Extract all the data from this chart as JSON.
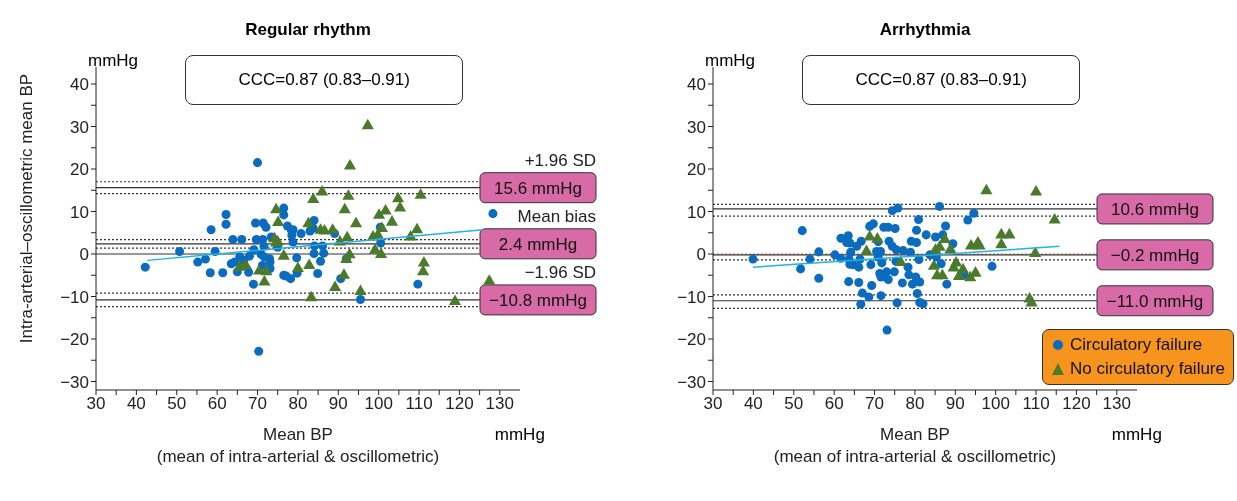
{
  "chart_data": [
    {
      "type": "scatter",
      "title": "Regular rhythm",
      "xlabel": "Mean BP\n(mean of intra-arterial & oscillometric)",
      "ylabel": "Intra-arterial–oscillometric mean BP",
      "xlim": [
        30,
        135
      ],
      "xticks": [
        30,
        {
          "value": 35,
          "label": null
        },
        40,
        {
          "value": 45,
          "label": null
        },
        50,
        {
          "value": 55,
          "label": null
        },
        60,
        {
          "value": 65,
          "label": null
        },
        70,
        {
          "value": 75,
          "label": null
        },
        80,
        {
          "value": 85,
          "label": null
        },
        90,
        {
          "value": 95,
          "label": null
        },
        100,
        {
          "value": 105,
          "label": null
        },
        110,
        {
          "value": 115,
          "label": null
        },
        120,
        {
          "value": 125,
          "label": null
        },
        130
      ],
      "ylim": [
        -32,
        44
      ],
      "yticks": [
        {
          "value": -30,
          "label": "−30"
        },
        {
          "value": -25,
          "label": null
        },
        {
          "value": -20,
          "label": "−20"
        },
        {
          "value": -15,
          "label": null
        },
        {
          "value": -10,
          "label": "−10"
        },
        {
          "value": -5,
          "label": null
        },
        0,
        {
          "value": 5,
          "label": null
        },
        10,
        {
          "value": 15,
          "label": null
        },
        20,
        {
          "value": 25,
          "label": null
        },
        30,
        {
          "value": 35,
          "label": null
        },
        40
      ],
      "legend": false,
      "series": [
        {
          "type": "scatter",
          "color": "#0b6cbf",
          "marker": "circle",
          "x": [
            42.2,
            50.7,
            55.2,
            57.1,
            58.3,
            61.4,
            58.5,
            59.5,
            62.2,
            62.2,
            63.9,
            66.1,
            63.5,
            64.3,
            65.0,
            65.6,
            66.6,
            68.0,
            67.8,
            69.0,
            69.5,
            69.7,
            69.1,
            70.0,
            70.3,
            71.4,
            72.1,
            71.3,
            71.6,
            70.9,
            71.7,
            73.0,
            73.1,
            71.2,
            73.1,
            73.4,
            75.0,
            76.5,
            76.5,
            77.4,
            78.4,
            78.8,
            78.5,
            80.8,
            78.8,
            79.7,
            76.5,
            77.1,
            78.2,
            79.8,
            83.0,
            84.0,
            83.8,
            84.1,
            86.1,
            84.0,
            86.4,
            85.6,
            84.9,
            89.1,
            90.6,
            92.0,
            95.5,
            100.4,
            100.5,
            109.7,
            128.3
          ],
          "values": [
            -3.1,
            0.6,
            -1.9,
            -1.2,
            -4.4,
            -4.4,
            5.7,
            0.6,
            9.3,
            7.0,
            3.4,
            3.4,
            -2.3,
            -1.9,
            -4.2,
            -0.7,
            -1.5,
            -0.5,
            -4.3,
            -7.1,
            7.3,
            3.4,
            1.0,
            21.5,
            -22.9,
            7.3,
            6.3,
            3.4,
            1.8,
            -0.1,
            -0.7,
            -1.1,
            -1.9,
            -2.7,
            -3.4,
            4.0,
            1.6,
            10.8,
            9.2,
            6.6,
            5.6,
            5.7,
            4.4,
            4.8,
            2.8,
            -0.9,
            -5.0,
            -5.2,
            -5.8,
            -4.5,
            5.4,
            7.9,
            6.1,
            1.9,
            1.9,
            0.1,
            0.2,
            -1.7,
            -4.6,
            4.8,
            -5.8,
            -1.1,
            -10.7,
            6.3,
            2.6,
            -7.1,
            9.5
          ]
        },
        {
          "type": "scatter",
          "color": "#4b7a2c",
          "marker": "triangle",
          "x": [
            97.3,
            92.9,
            86.0,
            83.8,
            92.5,
            104.8,
            110.4,
            91.6,
            74.6,
            75.1,
            82.6,
            94.4,
            100.1,
            101.7,
            105.3,
            103.3,
            85.6,
            86.6,
            88.6,
            100.8,
            109.5,
            107.9,
            98.6,
            99.8,
            90.4,
            92.2,
            74.2,
            75.0,
            74.6,
            99.1,
            100.6,
            92.8,
            92.0,
            76.5,
            111.2,
            111.0,
            65.6,
            67.1,
            70.4,
            72.2,
            71.7,
            80.0,
            82.8,
            91.4,
            89.2,
            95.5,
            83.3,
            118.9,
            127.4
          ],
          "values": [
            30.2,
            20.7,
            14.6,
            12.8,
            13.6,
            13.0,
            13.8,
            10.4,
            10.4,
            7.4,
            7.1,
            7.1,
            9.1,
            10.1,
            10.8,
            7.5,
            5.6,
            5.4,
            5.6,
            6.0,
            5.7,
            4.0,
            4.0,
            4.4,
            2.8,
            3.8,
            3.6,
            2.8,
            2.6,
            0.9,
            -0.1,
            -0.2,
            -1.3,
            -0.5,
            -2.1,
            -4.2,
            -3.1,
            -2.7,
            -4.0,
            -4.2,
            -6.6,
            -3.4,
            -2.7,
            -5.0,
            -7.9,
            -8.8,
            -10.3,
            -11.2,
            -6.4
          ]
        },
        {
          "type": "line",
          "color": "#1fb3e8",
          "x": [
            42.7,
            125.8
          ],
          "values": [
            -1.5,
            5.7
          ]
        }
      ],
      "ref_lines": [
        {
          "axis": "y",
          "value": 0,
          "color": "#333333",
          "line_style": "solid"
        },
        {
          "axis": "y",
          "value": 15.6,
          "label": "15.6 mmHg",
          "color": "#333333",
          "line_style": "solid"
        },
        {
          "axis": "y",
          "value": 17.0,
          "color": "#333333",
          "line_style": "dotted"
        },
        {
          "axis": "y",
          "value": 14.2,
          "color": "#333333",
          "line_style": "dotted"
        },
        {
          "axis": "y",
          "value": 2.4,
          "label": "2.4 mmHg",
          "color": "#333333",
          "line_style": "solid"
        },
        {
          "axis": "y",
          "value": 3.4,
          "color": "#333333",
          "line_style": "dotted"
        },
        {
          "axis": "y",
          "value": 1.4,
          "color": "#333333",
          "line_style": "dotted"
        },
        {
          "axis": "y",
          "value": -10.8,
          "label": "−10.8 mmHg",
          "color": "#333333",
          "line_style": "solid"
        },
        {
          "axis": "y",
          "value": -9.2,
          "color": "#333333",
          "line_style": "dotted"
        },
        {
          "axis": "y",
          "value": -12.4,
          "color": "#333333",
          "line_style": "dotted"
        }
      ],
      "annotations": [
        "CCC=0.87 (0.83–0.91)",
        "mmHg",
        "mmHg",
        "+1.96 SD",
        "Mean bias",
        "−1.96 SD"
      ]
    },
    {
      "type": "scatter",
      "title": "Arrhythmia",
      "xlabel": "Mean BP\n(mean of intra-arterial & oscillometric)",
      "xlim": [
        30,
        135
      ],
      "xticks": [
        30,
        {
          "value": 35,
          "label": null
        },
        40,
        {
          "value": 45,
          "label": null
        },
        50,
        {
          "value": 55,
          "label": null
        },
        60,
        {
          "value": 65,
          "label": null
        },
        70,
        {
          "value": 75,
          "label": null
        },
        80,
        {
          "value": 85,
          "label": null
        },
        90,
        {
          "value": 95,
          "label": null
        },
        100,
        {
          "value": 105,
          "label": null
        },
        110,
        {
          "value": 115,
          "label": null
        },
        120,
        {
          "value": 125,
          "label": null
        },
        130
      ],
      "ylim": [
        -32,
        44
      ],
      "yticks": [
        {
          "value": -30,
          "label": "−30"
        },
        {
          "value": -25,
          "label": null
        },
        {
          "value": -20,
          "label": "−20"
        },
        {
          "value": -15,
          "label": null
        },
        {
          "value": -10,
          "label": "−10"
        },
        {
          "value": -5,
          "label": null
        },
        0,
        {
          "value": 5,
          "label": null
        },
        10,
        {
          "value": 15,
          "label": null
        },
        20,
        {
          "value": 25,
          "label": null
        },
        30,
        {
          "value": 35,
          "label": null
        },
        40
      ],
      "legend": "bottom right",
      "series": [
        {
          "type": "scatter",
          "name": "Circulatory failure",
          "color": "#0b6cbf",
          "marker": "circle",
          "x": [
            39.9,
            52.1,
            51.7,
            54.0,
            56.2,
            56.2,
            60.2,
            61.6,
            61.7,
            63.5,
            63.1,
            63.9,
            64.1,
            63.7,
            63.9,
            64.7,
            66.1,
            65.6,
            66.7,
            66.4,
            63.6,
            66.1,
            67.0,
            68.6,
            66.6,
            69.3,
            68.8,
            69.7,
            70.9,
            70.5,
            71.5,
            70.9,
            69.1,
            71.8,
            71.3,
            71.6,
            73.0,
            73.4,
            71.6,
            72.3,
            73.4,
            75.1,
            73.6,
            74.4,
            75.4,
            77.1,
            75.3,
            74.9,
            73.1,
            74.4,
            75.8,
            75.6,
            76.9,
            78.3,
            78.5,
            79.1,
            80.4,
            78.9,
            81.0,
            80.4,
            80.9,
            82.8,
            79.4,
            80.2,
            81.2,
            80.6,
            81.2,
            82.0,
            83.7,
            85.3,
            86.5,
            85.1,
            86.9,
            87.6,
            89.4,
            87.9,
            86.1,
            93.1,
            94.6,
            92.1,
            99.1
          ],
          "values": [
            -1.2,
            5.5,
            -3.5,
            -1.2,
            0.5,
            -5.7,
            -0.2,
            -1.0,
            3.7,
            4.3,
            2.7,
            2.6,
            0.4,
            -1.3,
            -2.4,
            -2.5,
            -3.1,
            1.8,
            3.0,
            -1.2,
            -6.5,
            -6.7,
            -9.2,
            -10.1,
            -11.8,
            -7.4,
            6.5,
            7.1,
            2.9,
            0.6,
            0.6,
            -0.7,
            -2.5,
            -2.1,
            -4.6,
            -5.4,
            -4.2,
            -6.0,
            -9.8,
            6.3,
            6.3,
            6.0,
            3.0,
            1.8,
            1.0,
            0.8,
            -1.7,
            -4.2,
            -17.9,
            10.2,
            10.8,
            -11.5,
            -6.8,
            -3.1,
            -4.9,
            3.0,
            2.7,
            0.4,
            -1.3,
            5.6,
            8.1,
            4.5,
            -7.1,
            -5.4,
            -6.6,
            -9.3,
            -11.4,
            -11.7,
            -0.2,
            -0.7,
            -2.3,
            4.0,
            4.5,
            6.6,
            2.4,
            -7.1,
            11.2,
            8.0,
            9.6,
            -4.9,
            -2.9
          ]
        },
        {
          "type": "scatter",
          "name": "No circulatory failure",
          "color": "#4b7a2c",
          "marker": "triangle",
          "x": [
            68.8,
            70.7,
            68.0,
            76.5,
            87.4,
            86.1,
            85.1,
            88.8,
            84.7,
            85.5,
            86.8,
            90.2,
            89.6,
            91.9,
            90.9,
            93.7,
            95.0,
            93.9,
            95.6,
            96.0,
            101.4,
            103.4,
            101.4,
            97.7,
            110.0,
            114.6,
            109.8,
            108.4,
            108.9
          ],
          "values": [
            4.0,
            3.5,
            0.6,
            -2.0,
            3.4,
            1.6,
            0.9,
            1.0,
            -2.9,
            -5.1,
            -5.1,
            -2.1,
            -3.3,
            -3.7,
            -5.3,
            -5.6,
            -4.5,
            1.9,
            2.6,
            1.9,
            4.5,
            4.5,
            2.2,
            14.9,
            14.6,
            8.0,
            0.1,
            -10.6,
            -11.5
          ]
        },
        {
          "type": "line",
          "color": "#1fb3e8",
          "x": [
            39.9,
            115.8
          ],
          "values": [
            -3.1,
            1.8
          ]
        }
      ],
      "ref_lines": [
        {
          "axis": "y",
          "value": 0,
          "color": "#e0704a",
          "line_style": "dotted"
        },
        {
          "axis": "y",
          "value": 10.6,
          "label": "10.6 mmHg",
          "color": "#333333",
          "line_style": "solid"
        },
        {
          "axis": "y",
          "value": 11.7,
          "color": "#333333",
          "line_style": "dotted"
        },
        {
          "axis": "y",
          "value": 8.9,
          "color": "#333333",
          "line_style": "dotted"
        },
        {
          "axis": "y",
          "value": -0.2,
          "label": "−0.2 mmHg",
          "color": "#333333",
          "line_style": "solid"
        },
        {
          "axis": "y",
          "value": -1.4,
          "color": "#333333",
          "line_style": "dotted"
        },
        {
          "axis": "y",
          "value": -11.0,
          "label": "−11.0 mmHg",
          "color": "#333333",
          "line_style": "solid"
        },
        {
          "axis": "y",
          "value": -9.6,
          "color": "#333333",
          "line_style": "dotted"
        },
        {
          "axis": "y",
          "value": -12.8,
          "color": "#333333",
          "line_style": "dotted"
        }
      ],
      "annotations": [
        "CCC=0.87 (0.83–0.91)",
        "mmHg",
        "mmHg"
      ]
    }
  ]
}
